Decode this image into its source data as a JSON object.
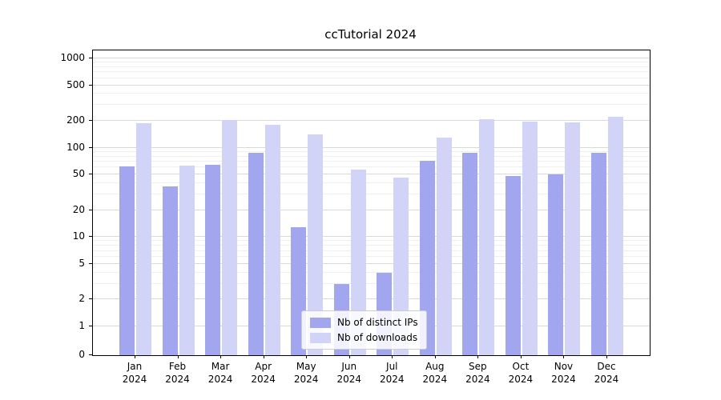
{
  "chart_data": {
    "type": "bar",
    "title": "ccTutorial 2024",
    "categories": [
      "Jan 2024",
      "Feb 2024",
      "Mar 2024",
      "Apr 2024",
      "May 2024",
      "Jun 2024",
      "Jul 2024",
      "Aug 2024",
      "Sep 2024",
      "Oct 2024",
      "Nov 2024",
      "Dec 2024"
    ],
    "series": [
      {
        "name": "Nb of distinct IPs",
        "color": "#a2a6ee",
        "values": [
          62,
          37,
          65,
          87,
          13,
          3,
          4,
          72,
          87,
          48,
          50,
          87
        ]
      },
      {
        "name": "Nb of downloads",
        "color": "#d2d4f7",
        "values": [
          190,
          63,
          205,
          180,
          140,
          57,
          46,
          130,
          210,
          198,
          193,
          220
        ]
      }
    ],
    "yticks": [
      0,
      1,
      2,
      5,
      10,
      20,
      50,
      100,
      200,
      500,
      1000
    ],
    "scale": "symlog",
    "ylim": [
      0,
      1400
    ],
    "grid": true,
    "legend_position": "lower center",
    "xlabel": "",
    "ylabel": ""
  }
}
